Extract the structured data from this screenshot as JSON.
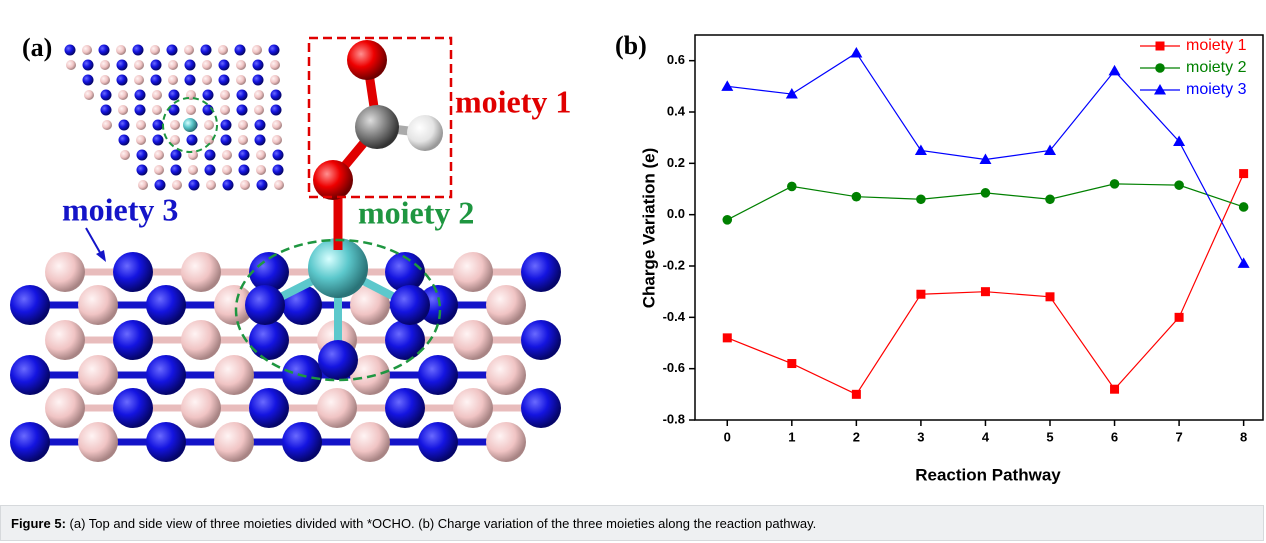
{
  "panel_a": {
    "label": "(a)",
    "moiety_1": "moiety 1",
    "moiety_2": "moiety 2",
    "moiety_3": "moiety 3"
  },
  "panel_b_label": "(b)",
  "chart_data": {
    "type": "line",
    "x_label": "Reaction Pathway",
    "y_label": "Charge Variation (e)",
    "x": [
      0,
      1,
      2,
      3,
      4,
      5,
      6,
      7,
      8
    ],
    "xlim": [
      -0.5,
      8.3
    ],
    "xticks": [
      0,
      1,
      2,
      3,
      4,
      5,
      6,
      7,
      8
    ],
    "ylim": [
      -0.8,
      0.7
    ],
    "yticks": [
      {
        "value": -0.8,
        "label": "-0.8"
      },
      {
        "value": -0.6,
        "label": "-0.6"
      },
      {
        "value": -0.4,
        "label": "-0.4"
      },
      {
        "value": -0.2,
        "label": "-0.2"
      },
      {
        "value": 0,
        "label": "0.0"
      },
      {
        "value": 0.2,
        "label": "0.2"
      },
      {
        "value": 0.4,
        "label": "0.4"
      },
      {
        "value": 0.6,
        "label": "0.6"
      }
    ],
    "legend": "upper right",
    "grid": false,
    "series": [
      {
        "name": "moiety 1",
        "color": "#ff0000",
        "marker": "square",
        "values": [
          -0.48,
          -0.58,
          -0.7,
          -0.31,
          -0.3,
          -0.32,
          -0.68,
          -0.4,
          0.16
        ]
      },
      {
        "name": "moiety 2",
        "color": "#008000",
        "marker": "circle",
        "values": [
          -0.02,
          0.11,
          0.07,
          0.06,
          0.085,
          0.06,
          0.12,
          0.115,
          0.03
        ]
      },
      {
        "name": "moiety 3",
        "color": "#0000ff",
        "marker": "triangle",
        "values": [
          0.5,
          0.47,
          0.63,
          0.25,
          0.215,
          0.25,
          0.56,
          0.285,
          -0.19
        ]
      }
    ]
  },
  "caption": {
    "label": "Figure 5:",
    "text": "(a) Top and side view of three moieties divided with *OCHO. (b) Charge variation of the three moieties along the reaction pathway."
  }
}
